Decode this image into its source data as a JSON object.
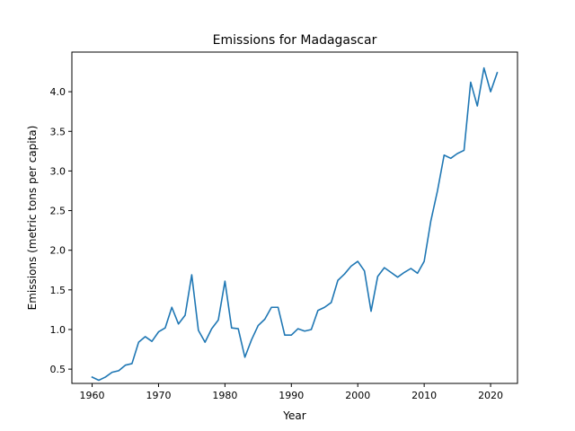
{
  "chart_data": {
    "type": "line",
    "title": "Emissions for Madagascar",
    "xlabel": "Year",
    "ylabel": "Emissions (metric tons per capita)",
    "xlim": [
      1956.95,
      2024.05
    ],
    "ylim": [
      0.32,
      4.5
    ],
    "grid": false,
    "legend": "none",
    "x_ticks": [
      1960,
      1970,
      1980,
      1990,
      2000,
      2010,
      2020
    ],
    "y_ticks": [
      0.5,
      1.0,
      1.5,
      2.0,
      2.5,
      3.0,
      3.5,
      4.0
    ],
    "x_tick_labels": [
      "1960",
      "1970",
      "1980",
      "1990",
      "2000",
      "2010",
      "2020"
    ],
    "y_tick_labels": [
      "0.5",
      "1.0",
      "1.5",
      "2.0",
      "2.5",
      "3.0",
      "3.5",
      "4.0"
    ],
    "series": [
      {
        "color": "#1f77b4",
        "x": [
          1960,
          1961,
          1962,
          1963,
          1964,
          1965,
          1966,
          1967,
          1968,
          1969,
          1970,
          1971,
          1972,
          1973,
          1974,
          1975,
          1976,
          1977,
          1978,
          1979,
          1980,
          1981,
          1982,
          1983,
          1984,
          1985,
          1986,
          1987,
          1988,
          1989,
          1990,
          1991,
          1992,
          1993,
          1994,
          1995,
          1996,
          1997,
          1998,
          1999,
          2000,
          2001,
          2002,
          2003,
          2004,
          2005,
          2006,
          2007,
          2008,
          2009,
          2010,
          2011,
          2012,
          2013,
          2014,
          2015,
          2016,
          2017,
          2018,
          2019,
          2020,
          2021
        ],
        "values": [
          0.4,
          0.36,
          0.4,
          0.46,
          0.48,
          0.55,
          0.57,
          0.84,
          0.91,
          0.85,
          0.97,
          1.02,
          1.28,
          1.07,
          1.18,
          1.69,
          0.99,
          0.84,
          1.01,
          1.12,
          1.61,
          1.02,
          1.01,
          0.65,
          0.87,
          1.05,
          1.13,
          1.28,
          1.28,
          0.93,
          0.93,
          1.01,
          0.98,
          1.0,
          1.24,
          1.28,
          1.34,
          1.62,
          1.7,
          1.8,
          1.86,
          1.74,
          1.23,
          1.67,
          1.78,
          1.72,
          1.66,
          1.72,
          1.77,
          1.71,
          1.86,
          2.37,
          2.75,
          3.2,
          3.16,
          3.22,
          3.26,
          4.12,
          3.82,
          4.3,
          4.0,
          4.24
        ]
      }
    ]
  }
}
